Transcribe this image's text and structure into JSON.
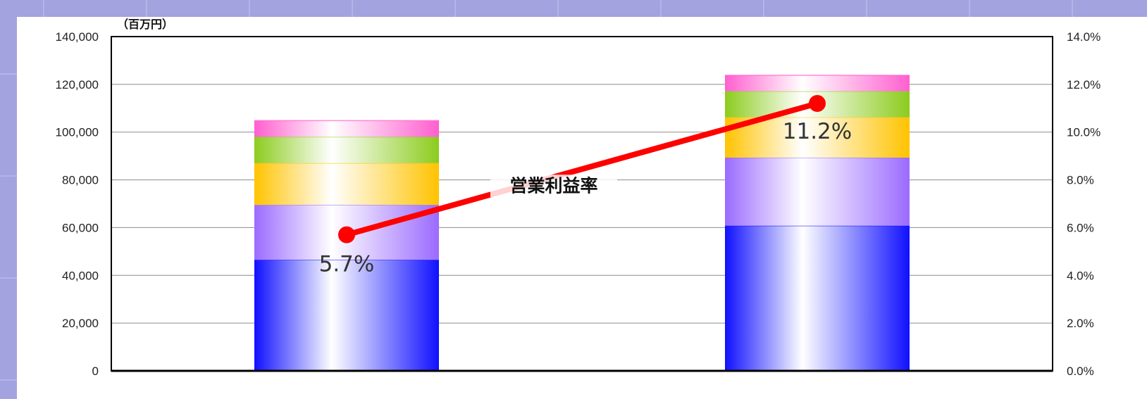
{
  "chart_data": {
    "type": "bar",
    "stacked": true,
    "categories": [
      "",
      ""
    ],
    "unit_label": "（百万円）",
    "y_left": {
      "min": 0,
      "max": 140000,
      "step": 20000,
      "tick_labels": [
        "0",
        "20,000",
        "40,000",
        "60,000",
        "80,000",
        "100,000",
        "120,000",
        "140,000"
      ]
    },
    "y_right": {
      "min": 0,
      "max": 14.0,
      "step": 2.0,
      "tick_labels": [
        "0.0%",
        "2.0%",
        "4.0%",
        "6.0%",
        "8.0%",
        "10.0%",
        "12.0%",
        "14.0%"
      ]
    },
    "grid": true,
    "segment_colors": [
      "#1010ff",
      "#9b6bff",
      "#ffc300",
      "#8ccc1e",
      "#ff5fcf"
    ],
    "stack_totals_by_category": [
      [
        46500,
        69500,
        87000,
        98000,
        104800
      ],
      [
        60800,
        89300,
        106200,
        117100,
        123800
      ]
    ],
    "line_series": {
      "name": "営業利益率",
      "color": "#ff0000",
      "values": [
        5.7,
        11.2
      ],
      "value_labels": [
        "5.7%",
        "11.2%"
      ]
    }
  }
}
